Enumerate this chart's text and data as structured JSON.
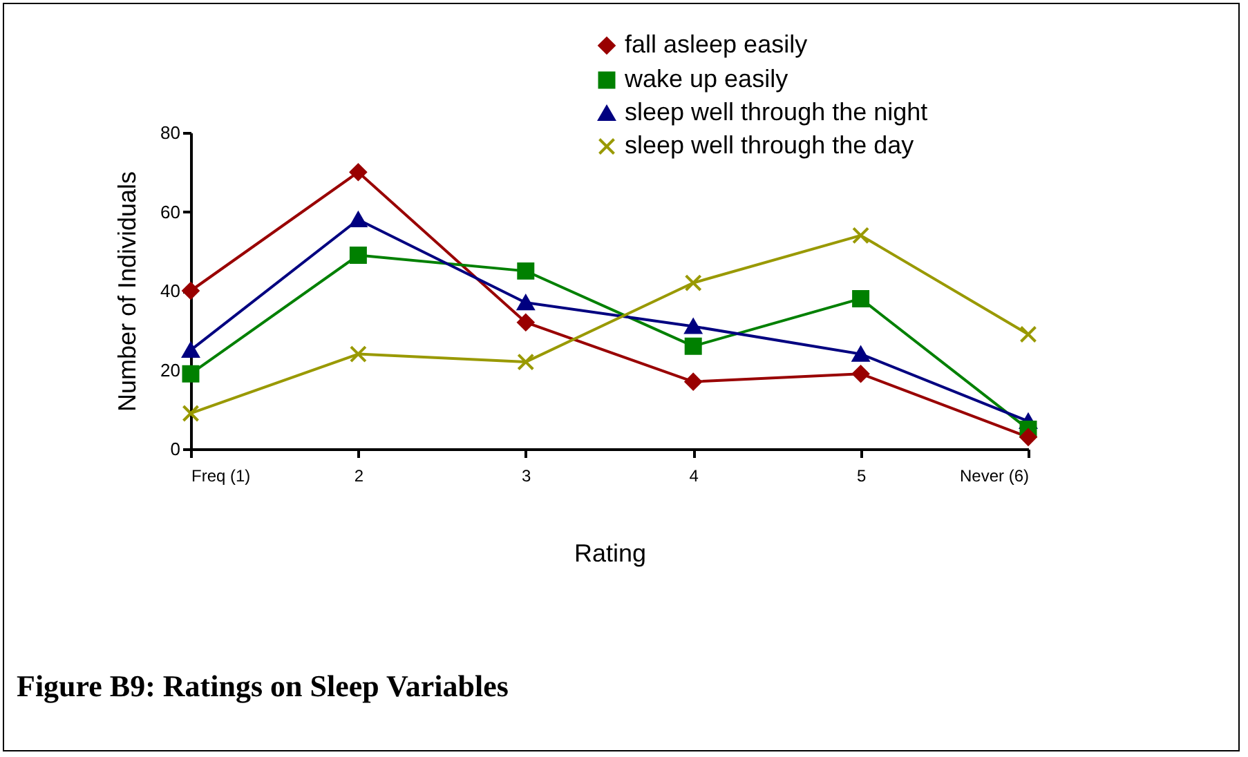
{
  "chart_data": {
    "type": "line",
    "title": "Figure B9: Ratings on Sleep Variables",
    "xlabel": "Rating",
    "ylabel": "Number of Individuals",
    "categories": [
      "Freq (1)",
      "2",
      "3",
      "4",
      "5",
      "Never (6)"
    ],
    "series": [
      {
        "name": "fall asleep easily",
        "color": "#990000",
        "marker": "diamond",
        "values": [
          40,
          70,
          32,
          17,
          19,
          3
        ]
      },
      {
        "name": "wake up easily",
        "color": "#008000",
        "marker": "square",
        "values": [
          19,
          49,
          45,
          26,
          38,
          5
        ]
      },
      {
        "name": "sleep well through the night",
        "color": "#000080",
        "marker": "triangle",
        "values": [
          25,
          58,
          37,
          31,
          24,
          7
        ]
      },
      {
        "name": "sleep well through the day",
        "color": "#999900",
        "marker": "cross",
        "values": [
          9,
          24,
          22,
          42,
          54,
          29
        ]
      }
    ],
    "ylim": [
      0,
      80
    ],
    "yticks": [
      0,
      20,
      40,
      60,
      80
    ],
    "grid": false,
    "legend": "top right",
    "line_style": "solid"
  }
}
